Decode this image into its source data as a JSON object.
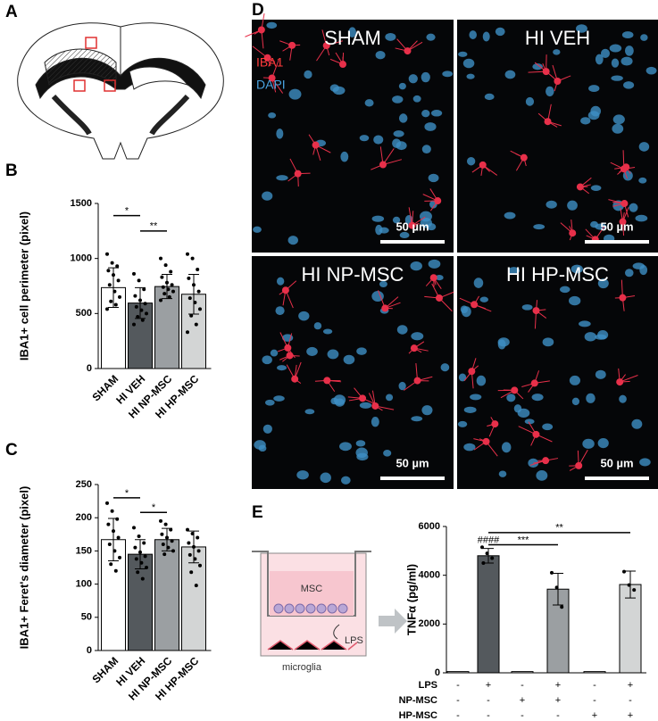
{
  "figure": {
    "panel_labels": [
      "A",
      "B",
      "C",
      "D",
      "E"
    ],
    "micrographs": [
      {
        "title": "SHAM",
        "scale": "50 µm"
      },
      {
        "title": "HI VEH",
        "scale": "50 µm"
      },
      {
        "title": "HI NP-MSC",
        "scale": "50 µm"
      },
      {
        "title": "HI HP-MSC",
        "scale": "50 µm"
      }
    ],
    "stains": [
      "IBA1",
      "DAPI"
    ],
    "schematic": {
      "insert": "MSC",
      "stimulus": "LPS",
      "cells": "microglia"
    }
  },
  "chart_data": [
    {
      "type": "bar",
      "y_label": "IBA1+ cell perimeter (pixel)",
      "categories": [
        "SHAM",
        "HI VEH",
        "HI NP-MSC",
        "HI HP-MSC"
      ],
      "values": [
        735,
        595,
        745,
        675
      ],
      "errors": [
        180,
        140,
        110,
        180
      ],
      "colors": [
        "#ffffff",
        "#54595d",
        "#9b9fa2",
        "#d3d5d5"
      ],
      "points": [
        [
          1040,
          960,
          930,
          890,
          850,
          800,
          760,
          700,
          650,
          610,
          580,
          540
        ],
        [
          860,
          800,
          720,
          660,
          620,
          590,
          560,
          530,
          500,
          470,
          440,
          400
        ],
        [
          1000,
          940,
          880,
          830,
          780,
          760,
          740,
          720,
          700,
          680,
          650,
          620
        ],
        [
          1040,
          1000,
          900,
          820,
          760,
          700,
          640,
          600,
          540,
          480,
          400,
          330
        ]
      ],
      "ylim": [
        0,
        1500
      ],
      "yticks": [
        0,
        500,
        1000,
        1500
      ],
      "annotations": [
        {
          "text": "*",
          "pair": [
            0,
            1
          ],
          "y": 1390
        },
        {
          "text": "**",
          "pair": [
            1,
            2
          ],
          "y": 1250
        }
      ]
    },
    {
      "type": "bar",
      "y_label": "IBA1+ Feret's diameter (pixel)",
      "categories": [
        "SHAM",
        "HI VEH",
        "HI NP-MSC",
        "HI HP-MSC"
      ],
      "values": [
        167,
        145,
        167,
        156
      ],
      "errors": [
        32,
        22,
        17,
        24
      ],
      "colors": [
        "#ffffff",
        "#54595d",
        "#9b9fa2",
        "#d3d5d5"
      ],
      "points": [
        [
          222,
          210,
          198,
          190,
          180,
          170,
          160,
          150,
          140,
          130,
          120
        ],
        [
          185,
          172,
          162,
          155,
          148,
          142,
          138,
          132,
          125,
          118,
          108
        ],
        [
          195,
          190,
          182,
          175,
          170,
          165,
          160,
          155,
          150,
          145
        ],
        [
          182,
          176,
          170,
          162,
          156,
          150,
          144,
          138,
          128,
          118,
          98
        ]
      ],
      "ylim": [
        0,
        250
      ],
      "yticks": [
        0,
        50,
        100,
        150,
        200,
        250
      ],
      "annotations": [
        {
          "text": "*",
          "pair": [
            0,
            1
          ],
          "y": 230
        },
        {
          "text": "*",
          "pair": [
            1,
            2
          ],
          "y": 208
        }
      ]
    },
    {
      "type": "bar",
      "y_label": "TNFα (pg/ml)",
      "categories": [
        null,
        null,
        null,
        null,
        null,
        null
      ],
      "values": [
        50,
        4800,
        50,
        3430,
        50,
        3620
      ],
      "errors": [
        0,
        300,
        0,
        650,
        0,
        550
      ],
      "colors": [
        "#ffffff",
        "#54595d",
        "#ffffff",
        "#9b9fa2",
        "#ffffff",
        "#d3d5d5"
      ],
      "points": [
        [],
        [
          5150,
          4900,
          4700,
          4500
        ],
        [],
        [
          4100,
          3500,
          2700
        ],
        [],
        [
          4150,
          3600,
          3400
        ]
      ],
      "ylim": [
        0,
        6000
      ],
      "yticks": [
        0,
        2000,
        4000,
        6000
      ],
      "annotations": [
        {
          "text": "####",
          "pair": [
            1,
            1
          ],
          "y": 5250
        },
        {
          "text": "***",
          "pair": [
            1,
            3
          ],
          "y": 5250
        },
        {
          "text": "**",
          "pair": [
            1,
            5
          ],
          "y": 5750
        }
      ],
      "conditions": [
        {
          "label": "LPS",
          "cells": [
            "-",
            "+",
            "-",
            "+",
            "-",
            "+"
          ]
        },
        {
          "label": "NP-MSC",
          "cells": [
            "-",
            "-",
            "+",
            "+",
            "-",
            "-"
          ]
        },
        {
          "label": "HP-MSC",
          "cells": [
            "-",
            "-",
            "-",
            "-",
            "+",
            "+"
          ]
        }
      ]
    }
  ]
}
